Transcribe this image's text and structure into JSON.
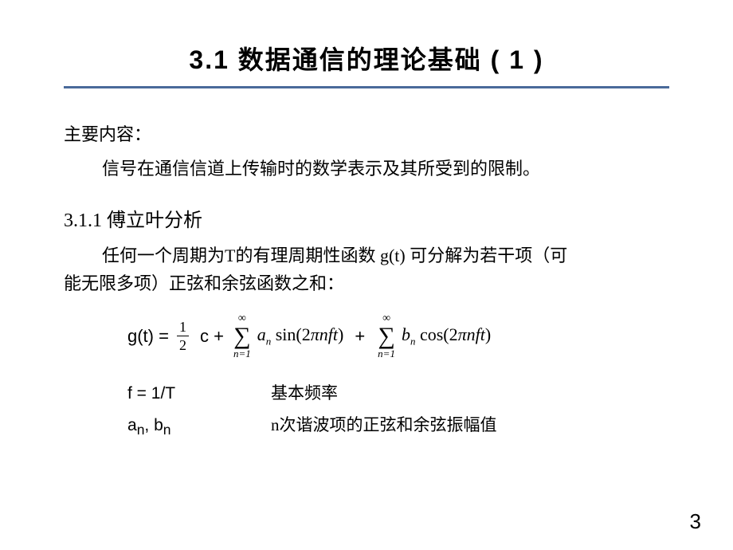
{
  "title": "3.1   数据通信的理论基础 ( 1 )",
  "rule_color": "#4a6a9a",
  "main_label": "主要内容：",
  "main_desc": "信号在通信信道上传输时的数学表示及其所受到的限制。",
  "subsection": "3.1.1  傅立叶分析",
  "para_line1": "任何一个周期为T的有理周期性函数 g(t) 可分解为若干项（可",
  "para_line2": "能无限多项）正弦和余弦函数之和：",
  "formula": {
    "lhs": "g(t) =",
    "frac_num": "1",
    "frac_den": "2",
    "c": "c +",
    "sum_top": "∞",
    "sum_bot": "n=1",
    "term1_a": "a",
    "term1_sub": "n",
    "term1_func": "sin(2",
    "pi": "π",
    "nft": "nft",
    "close": ")",
    "plus": "+",
    "term2_b": "b",
    "term2_sub": "n",
    "term2_func": "cos(2"
  },
  "defs": {
    "f_key": "f = 1/T",
    "f_val": "基本频率",
    "ab_key_a": "a",
    "ab_key_n1": "n",
    "ab_key_comma": ", b",
    "ab_key_n2": "n",
    "ab_val": "n次谐波项的正弦和余弦振幅值"
  },
  "page_number": "3",
  "colors": {
    "bg": "#ffffff",
    "text": "#000000",
    "rule": "#4a6a9a"
  }
}
